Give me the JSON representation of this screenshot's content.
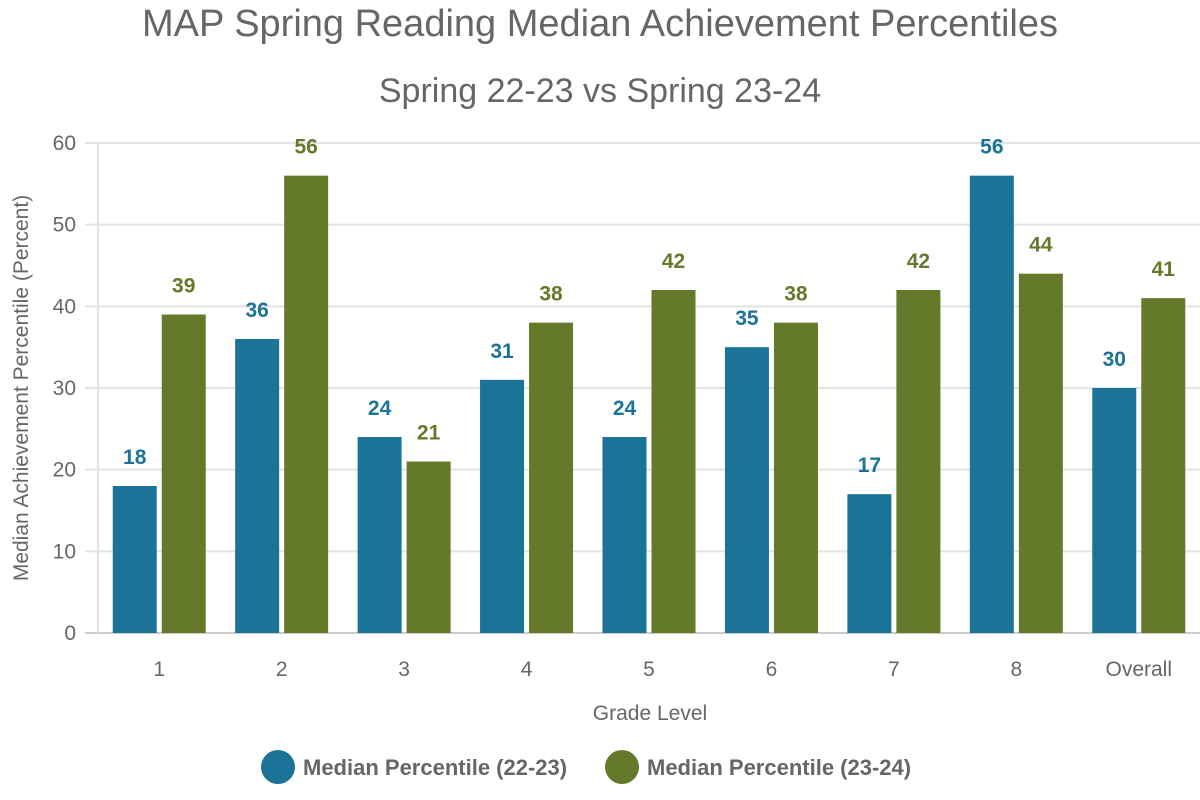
{
  "chart_data": {
    "type": "bar",
    "title": "MAP Spring Reading Median Achievement Percentiles",
    "subtitle": "Spring 22-23 vs Spring 23-24",
    "xlabel": "Grade Level",
    "ylabel": "Median Achievement Percentile (Percent)",
    "categories": [
      "1",
      "2",
      "3",
      "4",
      "5",
      "6",
      "7",
      "8",
      "Overall"
    ],
    "ylim": [
      0,
      60
    ],
    "yticks": [
      0,
      10,
      20,
      30,
      40,
      50,
      60
    ],
    "grid": true,
    "legend_position": "bottom",
    "series": [
      {
        "name": "Median Percentile (22-23)",
        "color": "#1b7398",
        "values": [
          18,
          36,
          24,
          31,
          24,
          35,
          17,
          56,
          30
        ]
      },
      {
        "name": "Median Percentile (23-24)",
        "color": "#65792a",
        "values": [
          39,
          56,
          21,
          38,
          42,
          38,
          42,
          44,
          41
        ]
      }
    ]
  }
}
